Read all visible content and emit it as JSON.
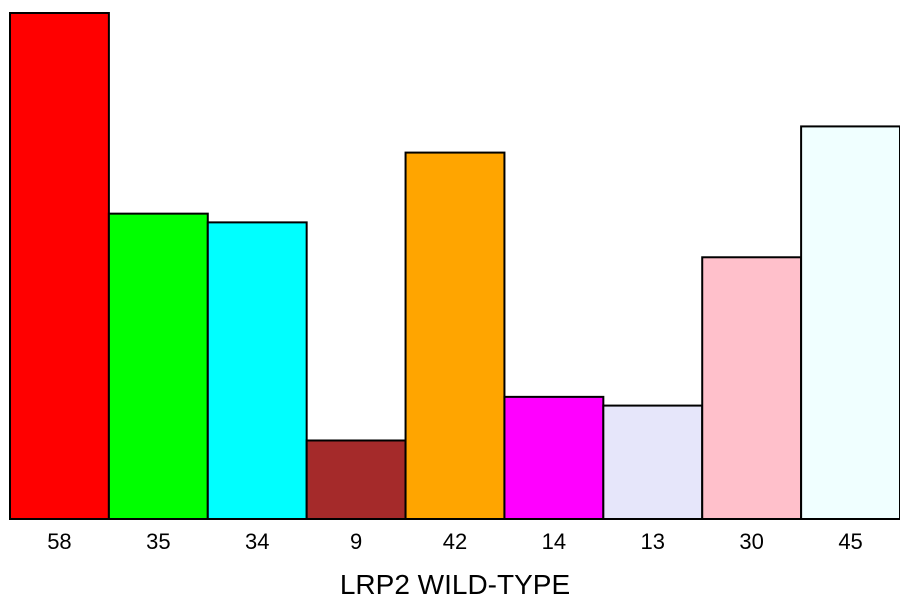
{
  "chart_data": {
    "type": "bar",
    "categories": [
      "58",
      "35",
      "34",
      "9",
      "42",
      "14",
      "13",
      "30",
      "45"
    ],
    "values": [
      58,
      35,
      34,
      9,
      42,
      14,
      13,
      30,
      45
    ],
    "colors": [
      "#ff0000",
      "#00ff00",
      "#00ffff",
      "#a52a2a",
      "#ffa500",
      "#ff00ff",
      "#e6e6fa",
      "#ffc0cb",
      "#f0ffff"
    ],
    "xlabel": "LRP2 WILD-TYPE",
    "ylim": [
      0,
      58
    ],
    "grid": false
  }
}
